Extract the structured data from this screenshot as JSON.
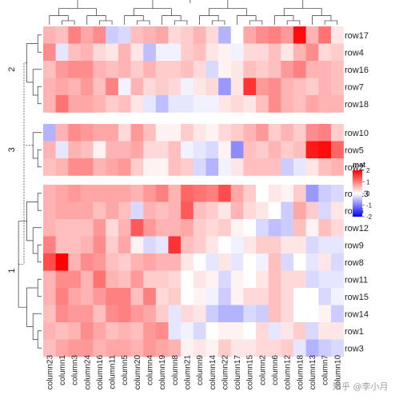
{
  "chart_data": {
    "type": "heatmap",
    "title": "",
    "legend": {
      "title": "mat",
      "ticks": [
        2,
        1,
        0,
        -1,
        -2
      ],
      "range": [
        -2,
        2
      ],
      "low_color": "#0000FF",
      "mid_color": "#FFFFFF",
      "high_color": "#FF0000",
      "placement": "right"
    },
    "columns": [
      "column23",
      "column1",
      "column3",
      "column24",
      "column16",
      "column11",
      "column5",
      "column20",
      "column4",
      "column19",
      "column8",
      "column21",
      "column9",
      "column14",
      "column22",
      "column17",
      "column15",
      "column2",
      "column6",
      "column12",
      "column18",
      "column13",
      "column7",
      "column10"
    ],
    "row_slices": [
      {
        "label": "2",
        "rows": [
          "row17",
          "row4",
          "row16",
          "row7",
          "row18"
        ]
      },
      {
        "label": "3",
        "rows": [
          "row10",
          "row5",
          "row2"
        ]
      },
      {
        "label": "1",
        "rows": [
          "row13",
          "row6",
          "row12",
          "row9",
          "row8",
          "row11",
          "row15",
          "row14",
          "row1",
          "row3"
        ]
      }
    ],
    "values": {
      "row17": [
        0.6,
        0.5,
        1.0,
        0.7,
        0.9,
        -0.4,
        -0.3,
        0.5,
        0.6,
        0.7,
        0.3,
        0.4,
        0.6,
        0.3,
        -0.6,
        0.0,
        0.7,
        0.9,
        1.0,
        0.8,
        1.9,
        0.6,
        1.1,
        0.2
      ],
      "row4": [
        0.9,
        -0.2,
        0.5,
        0.6,
        0.3,
        0.2,
        0.6,
        0.2,
        -0.5,
        -0.1,
        -0.1,
        0.4,
        0.5,
        0.2,
        0.1,
        -0.1,
        0.3,
        0.3,
        0.5,
        0.2,
        0.6,
        0.9,
        0.3,
        0.4
      ],
      "row16": [
        0.5,
        0.8,
        0.9,
        0.9,
        0.6,
        0.5,
        0.6,
        0.4,
        0.6,
        0.4,
        0.4,
        0.5,
        0.3,
        -0.3,
        0.1,
        0.2,
        0.5,
        0.4,
        0.5,
        0.8,
        1.0,
        0.6,
        0.6,
        0.5
      ],
      "row7": [
        0.6,
        0.7,
        0.6,
        0.8,
        0.5,
        1.0,
        -0.1,
        0.6,
        0.3,
        0.4,
        0.3,
        -0.1,
        0.2,
        0.3,
        -0.8,
        0.2,
        1.6,
        0.8,
        0.9,
        0.6,
        0.5,
        0.4,
        0.6,
        0.5
      ],
      "row18": [
        0.6,
        1.1,
        0.7,
        0.7,
        0.6,
        0.4,
        0.5,
        0.2,
        -0.2,
        -0.5,
        -0.2,
        -0.2,
        -0.1,
        -0.1,
        0.2,
        0.3,
        0.2,
        0.5,
        0.9,
        0.6,
        0.5,
        0.7,
        0.6,
        0.6
      ],
      "row10": [
        -0.6,
        0.6,
        0.9,
        0.8,
        0.7,
        0.7,
        0.3,
        0.8,
        0.5,
        0.1,
        0.1,
        0.4,
        0.2,
        0.1,
        0.3,
        0.4,
        0.6,
        0.8,
        0.4,
        0.6,
        0.4,
        0.9,
        1.0,
        0.4
      ],
      "row5": [
        0.6,
        -0.2,
        0.6,
        0.5,
        0.1,
        0.6,
        0.6,
        0.7,
        0.3,
        0.3,
        0.5,
        -0.1,
        -0.2,
        -0.3,
        0.1,
        -0.9,
        0.5,
        0.4,
        0.6,
        0.4,
        0.5,
        1.8,
        1.9,
        1.2
      ],
      "row2": [
        0.5,
        0.6,
        0.9,
        0.9,
        0.6,
        0.7,
        0.8,
        0.4,
        0.1,
        0.1,
        0.5,
        0.4,
        -0.3,
        -0.6,
        -0.1,
        0.2,
        0.5,
        0.5,
        0.5,
        -0.4,
        -0.2,
        0.2,
        0.5,
        0.6
      ],
      "row13": [
        0.6,
        0.7,
        0.8,
        0.7,
        0.7,
        0.7,
        0.7,
        0.6,
        0.8,
        1.0,
        0.6,
        1.2,
        1.1,
        1.0,
        1.4,
        0.7,
        0.4,
        0.0,
        0.2,
        0.1,
        0.4,
        -0.8,
        -0.4,
        -0.3
      ],
      "row6": [
        0.6,
        0.7,
        0.7,
        0.7,
        0.5,
        0.7,
        0.5,
        -0.3,
        0.6,
        0.5,
        0.6,
        1.3,
        0.5,
        0.4,
        0.2,
        0.6,
        0.3,
        0.2,
        0.0,
        -0.4,
        0.7,
        0.4,
        -0.3,
        0.2
      ],
      "row12": [
        0.6,
        0.5,
        0.5,
        0.5,
        0.8,
        0.3,
        0.6,
        1.3,
        0.8,
        0.6,
        0.6,
        0.7,
        0.4,
        0.3,
        0.4,
        0.1,
        0.0,
        -0.3,
        -0.5,
        -0.4,
        0.5,
        0.1,
        0.5,
        0.3
      ],
      "row9": [
        1.0,
        0.5,
        0.5,
        0.6,
        0.9,
        0.4,
        0.7,
        0.1,
        -0.3,
        -0.2,
        1.6,
        0.5,
        0.4,
        0.2,
        0.0,
        -0.1,
        0.2,
        0.4,
        0.4,
        0.2,
        0.2,
        -0.3,
        -0.2,
        -0.2
      ],
      "row8": [
        1.4,
        2.0,
        0.6,
        0.9,
        0.8,
        0.5,
        0.4,
        0.6,
        0.7,
        0.6,
        0.6,
        0.2,
        0.0,
        -0.2,
        0.2,
        -0.2,
        0.0,
        -0.1,
        0.5,
        -0.3,
        0.0,
        -0.2,
        0.2,
        -0.3
      ],
      "row11": [
        0.6,
        0.9,
        0.9,
        0.6,
        1.1,
        0.6,
        0.5,
        0.8,
        0.4,
        0.4,
        0.3,
        0.0,
        0.2,
        0.1,
        -0.3,
        0.1,
        0.0,
        0.2,
        0.5,
        0.3,
        0.3,
        -0.3,
        -0.2,
        -0.2
      ],
      "row15": [
        0.6,
        1.0,
        0.7,
        0.6,
        0.8,
        1.0,
        1.0,
        0.5,
        1.0,
        0.3,
        0.4,
        0.0,
        0.1,
        -0.1,
        -0.4,
        0.1,
        0.3,
        0.3,
        0.5,
        0.3,
        0.0,
        0.0,
        -0.3,
        -0.1
      ],
      "row14": [
        0.5,
        0.9,
        0.8,
        0.8,
        0.5,
        0.9,
        1.0,
        0.8,
        0.7,
        0.4,
        -0.2,
        0.3,
        0.2,
        -0.4,
        -0.6,
        -0.6,
        -0.3,
        -0.4,
        0.5,
        0.3,
        0.0,
        0.0,
        0.1,
        -0.4
      ],
      "row1": [
        0.6,
        0.5,
        0.6,
        0.9,
        0.7,
        0.5,
        0.6,
        0.5,
        0.8,
        0.9,
        -0.2,
        -0.1,
        -0.3,
        0.0,
        0.1,
        0.1,
        0.0,
        0.3,
        -0.2,
        0.2,
        0.4,
        -0.3,
        0.2,
        0.2
      ],
      "row3": [
        0.5,
        0.7,
        0.8,
        0.8,
        0.6,
        0.7,
        0.7,
        0.6,
        0.8,
        0.7,
        0.6,
        0.1,
        0.2,
        0.1,
        0.4,
        0.2,
        0.2,
        0.3,
        0.3,
        0.4,
        -0.2,
        -0.6,
        -0.4,
        -0.3
      ]
    }
  },
  "watermark": "知乎 @李小月"
}
